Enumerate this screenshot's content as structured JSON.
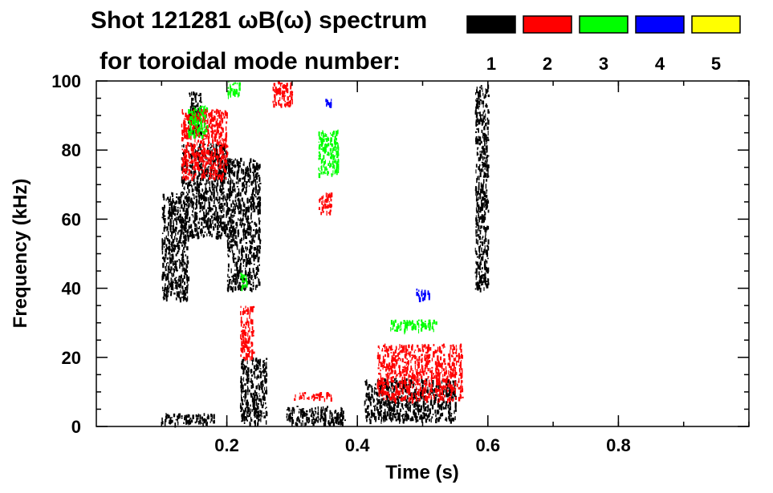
{
  "chart_data": {
    "type": "heatmap",
    "title_line1": "Shot 121281 ωB(ω) spectrum",
    "title_line2": "for toroidal mode number:",
    "xlabel": "Time (s)",
    "ylabel": "Frequency (kHz)",
    "xlim": [
      0.0,
      1.0
    ],
    "ylim": [
      0,
      100
    ],
    "x_ticks": [
      0.2,
      0.4,
      0.6,
      0.8
    ],
    "x_tick_labels": [
      "0.2",
      "0.4",
      "0.6",
      "0.8"
    ],
    "y_ticks": [
      0,
      20,
      40,
      60,
      80,
      100
    ],
    "y_tick_labels": [
      "0",
      "20",
      "40",
      "60",
      "80",
      "100"
    ],
    "legend_placement": "top-right",
    "legend": [
      {
        "label": "1",
        "color": "#000000"
      },
      {
        "label": "2",
        "color": "#ff0000"
      },
      {
        "label": "3",
        "color": "#00ff00"
      },
      {
        "label": "4",
        "color": "#0000ff"
      },
      {
        "label": "5",
        "color": "#ffff00"
      }
    ],
    "series": [
      {
        "mode": "1",
        "color": "#000000",
        "regions": [
          {
            "t": [
              0.1,
              0.14
            ],
            "f": [
              37,
              68
            ]
          },
          {
            "t": [
              0.13,
              0.2
            ],
            "f": [
              55,
              82
            ]
          },
          {
            "t": [
              0.14,
              0.16
            ],
            "f": [
              85,
              97
            ]
          },
          {
            "t": [
              0.2,
              0.25
            ],
            "f": [
              40,
              78
            ]
          },
          {
            "t": [
              0.22,
              0.26
            ],
            "f": [
              1,
              20
            ]
          },
          {
            "t": [
              0.29,
              0.38
            ],
            "f": [
              1,
              6
            ]
          },
          {
            "t": [
              0.41,
              0.55
            ],
            "f": [
              2,
              14
            ]
          },
          {
            "t": [
              0.1,
              0.18
            ],
            "f": [
              1,
              4
            ]
          },
          {
            "t": [
              0.58,
              0.6
            ],
            "f": [
              40,
              99
            ]
          }
        ]
      },
      {
        "mode": "2",
        "color": "#ff0000",
        "regions": [
          {
            "t": [
              0.13,
              0.2
            ],
            "f": [
              72,
              92
            ]
          },
          {
            "t": [
              0.27,
              0.3
            ],
            "f": [
              93,
              100
            ]
          },
          {
            "t": [
              0.34,
              0.36
            ],
            "f": [
              62,
              68
            ]
          },
          {
            "t": [
              0.22,
              0.24
            ],
            "f": [
              20,
              35
            ]
          },
          {
            "t": [
              0.43,
              0.56
            ],
            "f": [
              8,
              24
            ]
          },
          {
            "t": [
              0.3,
              0.36
            ],
            "f": [
              8,
              10
            ]
          }
        ]
      },
      {
        "mode": "3",
        "color": "#00ff00",
        "regions": [
          {
            "t": [
              0.14,
              0.17
            ],
            "f": [
              84,
              93
            ]
          },
          {
            "t": [
              0.34,
              0.37
            ],
            "f": [
              73,
              86
            ]
          },
          {
            "t": [
              0.2,
              0.22
            ],
            "f": [
              96,
              100
            ]
          },
          {
            "t": [
              0.45,
              0.52
            ],
            "f": [
              28,
              31
            ]
          },
          {
            "t": [
              0.22,
              0.23
            ],
            "f": [
              40,
              45
            ]
          }
        ]
      },
      {
        "mode": "4",
        "color": "#0000ff",
        "regions": [
          {
            "t": [
              0.35,
              0.36
            ],
            "f": [
              93,
              95
            ]
          },
          {
            "t": [
              0.49,
              0.51
            ],
            "f": [
              37,
              40
            ]
          }
        ]
      },
      {
        "mode": "5",
        "color": "#ffff00",
        "regions": []
      }
    ]
  }
}
